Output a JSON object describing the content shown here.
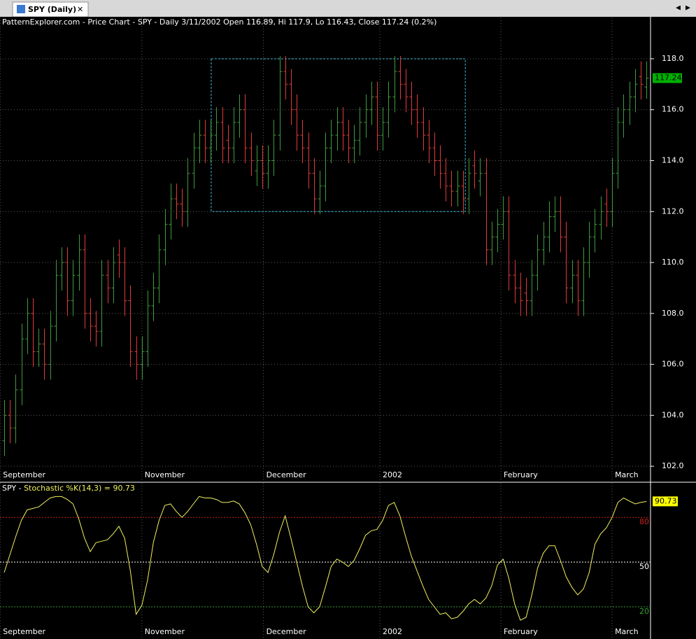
{
  "tab": "SPY (Daily)",
  "chart_data": [
    {
      "type": "ohlc",
      "title": "PatternExplorer.com - Price Chart - SPY - Daily 3/11/2002 Open 116.89, Hi 117.9, Lo 116.43, Close 117.24 (0.2%)",
      "open": [
        103.0,
        104.0,
        103.5,
        105.0,
        107.0,
        108.0,
        106.5,
        106.8,
        106.0,
        107.5,
        109.5,
        110.0,
        108.5,
        109.5,
        110.5,
        108.0,
        107.5,
        107.3,
        109.5,
        109.0,
        110.3,
        110.0,
        108.5,
        106.5,
        106.0,
        106.5,
        108.3,
        109.0,
        110.5,
        111.5,
        112.5,
        112.3,
        112.0,
        113.5,
        114.5,
        115.0,
        114.5,
        115.0,
        115.5,
        114.8,
        114.5,
        115.5,
        116.0,
        114.5,
        113.6,
        114.0,
        113.5,
        114.0,
        115.0,
        117.5,
        117.0,
        116.0,
        115.0,
        114.5,
        113.5,
        112.5,
        113.0,
        114.5,
        115.0,
        115.5,
        115.0,
        114.5,
        114.8,
        115.5,
        116.0,
        116.5,
        115.0,
        115.5,
        116.5,
        117.5,
        117.0,
        116.5,
        116.0,
        115.5,
        115.0,
        114.5,
        114.0,
        113.5,
        113.0,
        112.8,
        113.0,
        112.5,
        113.8,
        113.2,
        113.5,
        110.5,
        111.0,
        111.5,
        112.0,
        109.5,
        109.0,
        108.8,
        108.5,
        109.5,
        110.5,
        111.0,
        111.8,
        112.0,
        111.0,
        109.0,
        109.5,
        108.5,
        110.0,
        111.0,
        111.5,
        112.3,
        112.0,
        113.5,
        115.5,
        116.0,
        116.5,
        117.3,
        116.89
      ],
      "high": [
        104.6,
        104.6,
        105.6,
        107.6,
        108.6,
        108.6,
        107.4,
        107.4,
        108.1,
        110.1,
        110.6,
        110.6,
        110.1,
        111.1,
        111.1,
        108.6,
        108.1,
        110.1,
        110.1,
        110.6,
        110.9,
        110.6,
        109.1,
        107.1,
        107.1,
        108.9,
        109.6,
        111.1,
        112.1,
        113.1,
        113.1,
        112.9,
        114.1,
        115.1,
        115.6,
        115.6,
        115.6,
        116.1,
        116.1,
        115.4,
        116.1,
        116.6,
        116.6,
        115.1,
        114.6,
        114.6,
        114.6,
        115.6,
        118.1,
        118.1,
        117.6,
        116.6,
        115.6,
        115.1,
        114.1,
        113.6,
        115.1,
        115.6,
        116.1,
        116.1,
        115.6,
        115.4,
        116.1,
        116.6,
        117.1,
        117.1,
        116.1,
        117.1,
        118.1,
        118.1,
        117.6,
        117.1,
        116.6,
        116.1,
        115.6,
        115.1,
        114.6,
        114.1,
        113.6,
        113.6,
        113.6,
        114.1,
        114.4,
        114.1,
        114.1,
        111.6,
        112.1,
        112.6,
        112.6,
        110.1,
        109.6,
        109.4,
        110.1,
        111.1,
        111.6,
        112.4,
        112.6,
        112.6,
        111.6,
        110.1,
        110.1,
        110.6,
        111.6,
        112.1,
        112.6,
        112.9,
        114.1,
        116.1,
        116.6,
        117.1,
        117.6,
        117.9,
        117.9
      ],
      "low": [
        102.4,
        102.9,
        102.9,
        104.4,
        106.4,
        105.9,
        105.9,
        105.4,
        105.4,
        106.9,
        108.9,
        107.9,
        107.9,
        108.9,
        107.4,
        106.9,
        106.7,
        106.7,
        108.4,
        108.4,
        109.4,
        107.9,
        105.9,
        105.4,
        105.4,
        105.9,
        107.7,
        108.4,
        109.9,
        110.9,
        111.7,
        111.4,
        111.4,
        112.9,
        113.9,
        113.9,
        113.9,
        114.4,
        113.9,
        113.9,
        113.9,
        114.9,
        113.9,
        113.4,
        113.0,
        112.9,
        112.9,
        113.4,
        114.4,
        116.4,
        115.4,
        114.4,
        113.9,
        112.9,
        111.9,
        111.9,
        112.4,
        113.9,
        114.4,
        114.4,
        113.9,
        113.9,
        114.2,
        114.9,
        115.4,
        114.4,
        114.4,
        114.9,
        115.9,
        116.4,
        115.9,
        115.4,
        114.9,
        114.4,
        113.9,
        113.4,
        112.9,
        112.4,
        112.2,
        112.2,
        111.9,
        111.9,
        112.9,
        112.6,
        109.9,
        109.9,
        110.4,
        110.9,
        108.9,
        108.4,
        107.9,
        107.9,
        107.9,
        108.9,
        109.9,
        110.4,
        111.2,
        110.4,
        108.4,
        108.4,
        107.9,
        107.9,
        109.4,
        110.4,
        110.9,
        111.4,
        111.4,
        112.9,
        114.9,
        115.4,
        115.9,
        116.4,
        116.43
      ],
      "close": [
        104.0,
        103.5,
        105.0,
        107.0,
        108.0,
        106.5,
        106.8,
        106.0,
        107.5,
        109.5,
        110.0,
        108.5,
        109.5,
        110.5,
        108.0,
        107.5,
        107.3,
        109.5,
        109.0,
        110.0,
        110.0,
        108.5,
        106.5,
        106.0,
        106.5,
        108.3,
        109.0,
        110.5,
        111.5,
        112.5,
        112.3,
        112.0,
        113.5,
        114.5,
        115.0,
        114.5,
        115.0,
        115.5,
        114.5,
        114.5,
        115.5,
        116.0,
        114.5,
        114.0,
        114.0,
        113.5,
        114.0,
        115.0,
        117.5,
        117.0,
        116.0,
        115.0,
        114.5,
        113.5,
        112.5,
        113.0,
        114.5,
        115.0,
        115.5,
        115.0,
        114.5,
        114.8,
        115.5,
        116.0,
        116.5,
        115.0,
        115.5,
        116.5,
        117.5,
        117.0,
        116.5,
        116.0,
        115.5,
        115.0,
        114.5,
        114.0,
        113.5,
        113.0,
        112.8,
        113.0,
        112.5,
        113.5,
        113.5,
        113.5,
        110.5,
        111.0,
        111.5,
        112.0,
        109.5,
        109.0,
        108.5,
        108.5,
        109.5,
        110.5,
        111.0,
        111.8,
        112.0,
        111.0,
        109.0,
        109.5,
        108.5,
        110.0,
        111.0,
        111.5,
        112.0,
        112.0,
        113.5,
        115.5,
        116.0,
        116.5,
        117.0,
        117.0,
        117.24
      ],
      "up_color": "#3f9a3f",
      "down_color": "#e23a3a",
      "last_color": "#00b000",
      "xlim": [
        -0.73,
        112.7
      ],
      "xticks": [
        {
          "value": -0.7,
          "label": "September"
        },
        {
          "value": 24,
          "label": "November"
        },
        {
          "value": 45.2,
          "label": "December"
        },
        {
          "value": 65.5,
          "label": "2002"
        },
        {
          "value": 86.6,
          "label": "February"
        },
        {
          "value": 106,
          "label": "March"
        }
      ],
      "ylim": [
        101.4,
        119.62
      ],
      "yticks": [
        {
          "value": 102,
          "label": "102.0"
        },
        {
          "value": 104,
          "label": "104.0"
        },
        {
          "value": 106,
          "label": "106.0"
        },
        {
          "value": 108,
          "label": "108.0"
        },
        {
          "value": 110,
          "label": "110.0"
        },
        {
          "value": 112,
          "label": "112.0"
        },
        {
          "value": 114,
          "label": "114.0"
        },
        {
          "value": 116,
          "label": "116.0"
        },
        {
          "value": 118,
          "label": "118.0"
        }
      ],
      "grid": true,
      "box": {
        "from": 36.1,
        "to": 80.4,
        "low": 112,
        "high": 118,
        "color": "#3fb8d8"
      }
    },
    {
      "type": "line",
      "title_prefix": "SPY - ",
      "title": "Stochastic %K(14,3) = 90.73",
      "color": "#f0f060",
      "last_color": "#ffff00",
      "values": [
        43,
        55,
        67,
        78,
        85,
        86,
        87,
        90,
        93,
        94,
        94,
        92,
        89,
        79,
        66,
        57,
        63,
        64,
        65,
        69,
        74,
        66,
        44,
        15,
        21,
        38,
        63,
        78,
        88,
        89,
        84,
        80,
        84,
        89,
        94,
        93,
        93,
        92,
        90,
        90,
        91,
        89,
        83,
        75,
        62,
        47,
        43,
        55,
        70,
        81,
        66,
        50,
        34,
        20,
        16,
        20,
        33,
        47,
        52,
        50,
        47,
        51,
        59,
        68,
        71,
        72,
        78,
        88,
        90,
        81,
        67,
        54,
        44,
        34,
        25,
        20,
        15,
        16,
        12,
        13,
        17,
        22,
        25,
        22,
        26,
        34,
        48,
        52,
        39,
        22,
        11,
        13,
        28,
        46,
        56,
        61,
        61,
        51,
        40,
        33,
        28,
        32,
        43,
        62,
        69,
        73,
        80,
        90,
        93,
        91,
        89,
        90,
        90.73
      ],
      "xlim": [
        -0.73,
        112.7
      ],
      "xticks": [
        {
          "value": -0.7,
          "label": "September"
        },
        {
          "value": 24,
          "label": "November"
        },
        {
          "value": 45.2,
          "label": "December"
        },
        {
          "value": 65.5,
          "label": "2002"
        },
        {
          "value": 86.6,
          "label": "February"
        },
        {
          "value": 106,
          "label": "March"
        }
      ],
      "ylim": [
        -1.1,
        103.1
      ],
      "yticks": [
        80,
        50,
        20
      ],
      "level_colors": [
        "#c82020",
        "#ffffff",
        "#30a030"
      ]
    }
  ]
}
